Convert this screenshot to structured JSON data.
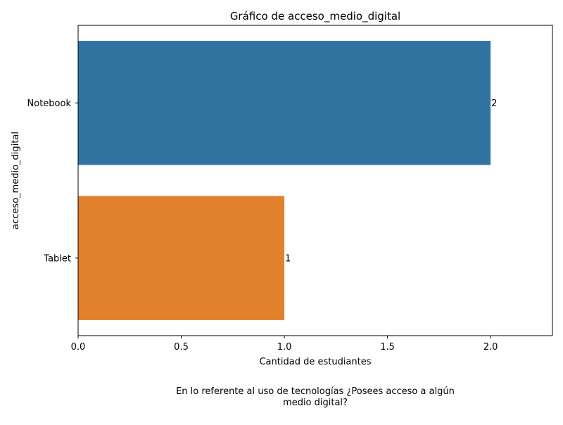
{
  "chart_data": {
    "type": "bar",
    "orientation": "horizontal",
    "title": "Gráfico de acceso_medio_digital",
    "xlabel": "Cantidad de estudiantes",
    "ylabel": "acceso_medio_digital",
    "categories": [
      "Notebook",
      "Tablet"
    ],
    "values": [
      2,
      1
    ],
    "data_labels": [
      "2",
      "1"
    ],
    "colors": [
      "#3274a1",
      "#e1812c"
    ],
    "xlim": [
      0,
      2.3
    ],
    "xticks": [
      0.0,
      0.5,
      1.0,
      1.5,
      2.0
    ],
    "xtick_labels": [
      "0.0",
      "0.5",
      "1.0",
      "1.5",
      "2.0"
    ],
    "grid": false,
    "legend": "none"
  },
  "caption": {
    "line1": "En lo referente al uso de tecnologías ¿Posees acceso a algún",
    "line2": "medio digital?"
  }
}
